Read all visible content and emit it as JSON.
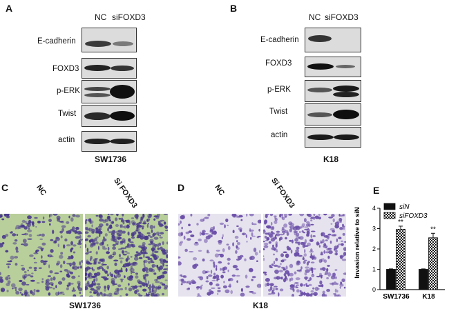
{
  "panels": {
    "a": {
      "letter": "A",
      "lanes": [
        "NC",
        "siFOXD3"
      ],
      "rows": [
        "E-cadherin",
        "FOXD3",
        "p-ERK",
        "Twist",
        "actin"
      ],
      "cell_line": "SW1736"
    },
    "b": {
      "letter": "B",
      "lanes": [
        "NC",
        "siFOXD3"
      ],
      "rows": [
        "E-cadherin",
        "FOXD3",
        "p-ERK",
        "Twist",
        "actin"
      ],
      "cell_line": "K18"
    },
    "c": {
      "letter": "C",
      "conditions": [
        "NC",
        "Si FOXD3"
      ],
      "cell_line": "SW1736",
      "stain_bg": "#b9cf9b",
      "stain_cells": "#4a3a8c"
    },
    "d": {
      "letter": "D",
      "conditions": [
        "NC",
        "Si FOXD3"
      ],
      "cell_line": "K18",
      "stain_bg": "#e6e3ee",
      "stain_cells": "#6b4fa8"
    }
  },
  "chart_data": {
    "letter": "E",
    "type": "bar",
    "categories": [
      "SW1736",
      "K18"
    ],
    "series": [
      {
        "name": "siN",
        "values": [
          1.0,
          1.0
        ],
        "errors": [
          0.02,
          0.02
        ],
        "fill": "solid"
      },
      {
        "name": "siFOXD3",
        "values": [
          2.97,
          2.55
        ],
        "errors": [
          0.15,
          0.22
        ],
        "fill": "checker"
      }
    ],
    "significance": [
      "**",
      "**"
    ],
    "ylabel": "Invasion relative to siN",
    "ylim": [
      0,
      4
    ],
    "yticks": [
      0,
      1,
      2,
      3,
      4
    ],
    "legend": "top-left"
  }
}
